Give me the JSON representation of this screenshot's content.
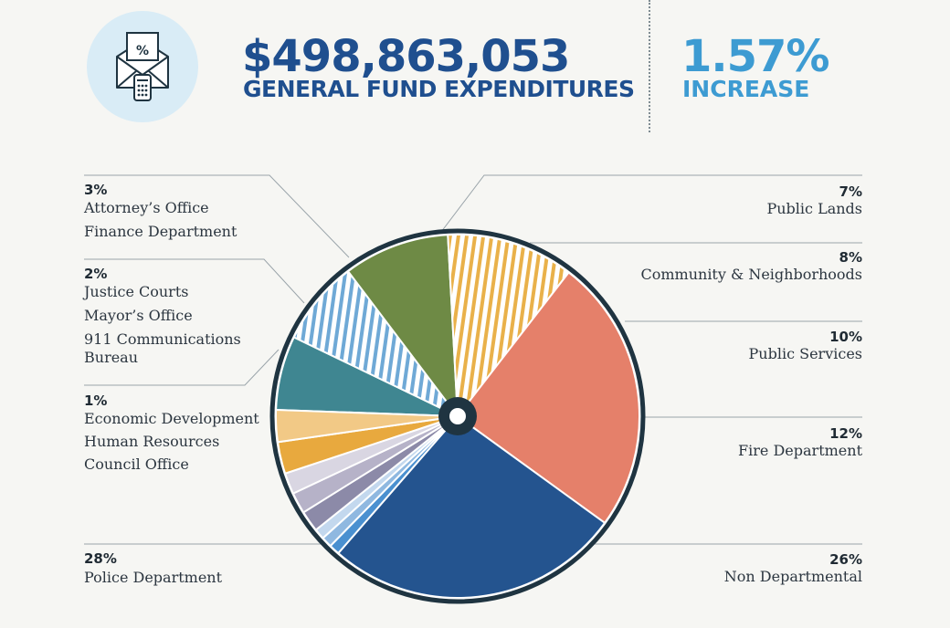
{
  "header": {
    "amount": "$498,863,053",
    "amount_label": "GENERAL FUND EXPENDITURES",
    "change": "1.57%",
    "change_label": "INCREASE",
    "icon_glyph": "%"
  },
  "colors": {
    "navy": "#24548f",
    "coral": "#e5806a",
    "yellow": "#e9b14a",
    "green": "#6e8a45",
    "teal": "#3f8691",
    "lightblue": "#6fa9d6",
    "outline": "#1f3441"
  },
  "chart_data": {
    "type": "pie",
    "slices": [
      {
        "label": "Public Lands",
        "value": 7,
        "pct_label": "7%"
      },
      {
        "label": "Community & Neighborhoods",
        "value": 8,
        "pct_label": "8%"
      },
      {
        "label": "Public Services",
        "value": 10,
        "pct_label": "10%"
      },
      {
        "label": "Fire Department",
        "value": 12,
        "pct_label": "12%"
      },
      {
        "label": "Non Departmental",
        "value": 26,
        "pct_label": "26%"
      },
      {
        "label": "Police Department",
        "value": 28,
        "pct_label": "28%"
      },
      {
        "label": "Economic Development",
        "value": 1,
        "pct_label": "1%"
      },
      {
        "label": "Human Resources",
        "value": 1,
        "pct_label": "1%"
      },
      {
        "label": "Council Office",
        "value": 1,
        "pct_label": "1%"
      },
      {
        "label": "Justice Courts",
        "value": 2,
        "pct_label": "2%"
      },
      {
        "label": "Mayor’s Office",
        "value": 2,
        "pct_label": "2%"
      },
      {
        "label": "911 Communications Bureau",
        "value": 2,
        "pct_label": "2%"
      },
      {
        "label": "Attorney’s Office",
        "value": 3,
        "pct_label": "3%"
      },
      {
        "label": "Finance Department",
        "value": 3,
        "pct_label": "3%"
      }
    ],
    "labels": {
      "public_lands": {
        "pct": "7%",
        "name": "Public Lands"
      },
      "community": {
        "pct": "8%",
        "name": "Community & Neighborhoods"
      },
      "public_services": {
        "pct": "10%",
        "name": "Public Services"
      },
      "fire": {
        "pct": "12%",
        "name": "Fire Department"
      },
      "non_dept": {
        "pct": "26%",
        "name": "Non Departmental"
      },
      "police": {
        "pct": "28%",
        "name": "Police Department"
      },
      "one_pct": {
        "pct": "1%",
        "names": [
          "Economic Development",
          "Human Resources",
          "Council Office"
        ]
      },
      "two_pct": {
        "pct": "2%",
        "names": [
          "Justice Courts",
          "Mayor’s Office",
          "911 Communications",
          "Bureau"
        ]
      },
      "three_pct": {
        "pct": "3%",
        "names": [
          "Attorney’s Office",
          "Finance Department"
        ]
      }
    }
  }
}
